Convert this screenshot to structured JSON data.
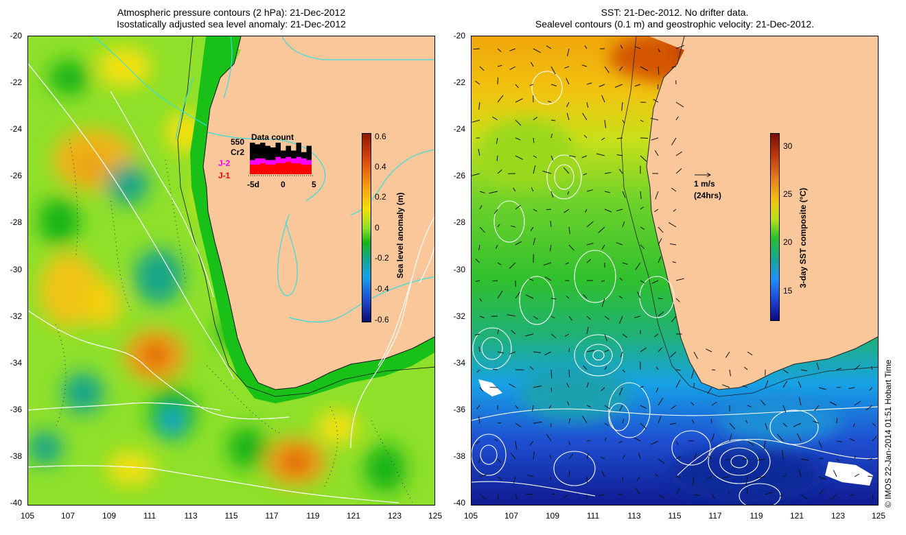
{
  "left": {
    "title_line1": "Atmospheric pressure contours (2 hPa): 21-Dec-2012",
    "title_line2": "Isostatically adjusted sea level anomaly: 21-Dec-2012",
    "colorbar": {
      "label": "Sea level anomaly (m)",
      "ticks": [
        "0.6",
        "0.4",
        "0.2",
        "0",
        "-0.2",
        "-0.4",
        "-0.6"
      ]
    },
    "data_count": {
      "title": "Data count",
      "count": "550",
      "labels": [
        "Cr2",
        "J-2",
        "J-1"
      ],
      "label_colors": [
        "#000000",
        "#ff00ff",
        "#ff0000"
      ],
      "axis_labels": [
        "-5d",
        "0",
        "5"
      ],
      "bars": [
        {
          "cr2": 1.0,
          "j2": 0.45,
          "j1": 0.3
        },
        {
          "cr2": 0.95,
          "j2": 0.5,
          "j1": 0.3
        },
        {
          "cr2": 1.0,
          "j2": 0.5,
          "j1": 0.35
        },
        {
          "cr2": 0.9,
          "j2": 0.45,
          "j1": 0.3
        },
        {
          "cr2": 0.85,
          "j2": 0.45,
          "j1": 0.3
        },
        {
          "cr2": 1.0,
          "j2": 0.55,
          "j1": 0.35
        },
        {
          "cr2": 0.75,
          "j2": 0.5,
          "j1": 0.35
        },
        {
          "cr2": 0.9,
          "j2": 0.55,
          "j1": 0.4
        },
        {
          "cr2": 0.75,
          "j2": 0.5,
          "j1": 0.35
        },
        {
          "cr2": 1.0,
          "j2": 0.55,
          "j1": 0.35
        },
        {
          "cr2": 0.7,
          "j2": 0.5,
          "j1": 0.3
        },
        {
          "cr2": 0.9,
          "j2": 0.45,
          "j1": 0.3
        }
      ]
    }
  },
  "right": {
    "title_line1": "SST: 21-Dec-2012. No drifter data.",
    "title_line2": "Sealevel contours (0.1 m) and geostrophic velocity: 21-Dec-2012.",
    "colorbar": {
      "label": "3-day SST composite (°C)",
      "ticks": [
        "30",
        "25",
        "20",
        "15"
      ]
    },
    "scale_vector": {
      "label": "1 m/s",
      "sublabel": "(24hrs)"
    }
  },
  "axes": {
    "lat_ticks": [
      "-20",
      "-22",
      "-24",
      "-26",
      "-28",
      "-30",
      "-32",
      "-34",
      "-36",
      "-38",
      "-40"
    ],
    "lon_ticks": [
      "105",
      "107",
      "109",
      "111",
      "113",
      "115",
      "117",
      "119",
      "121",
      "123",
      "125"
    ]
  },
  "credit": "© IMOS 22-Jan-2014 01:51 Hobart Time",
  "colors": {
    "land": "#f9c79a",
    "coast_left": "#00ff00",
    "ocean_left": "#8ee02a",
    "contour_cyan": "#33dddd"
  }
}
